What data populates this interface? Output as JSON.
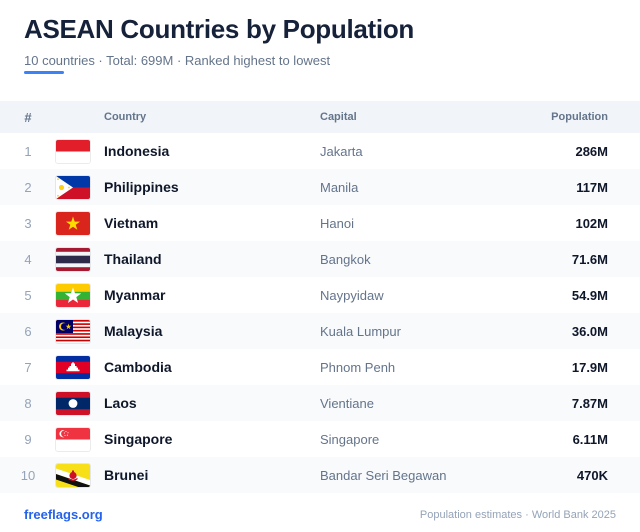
{
  "title": "ASEAN Countries by Population",
  "subtitle": "10 countries · Total: 699M · Ranked highest to lowest",
  "accent_color": "#3b82f6",
  "table": {
    "headers": {
      "rank": "#",
      "country": "Country",
      "capital": "Capital",
      "population": "Population"
    },
    "rows": [
      {
        "rank": "1",
        "flag": "indonesia-flag",
        "country": "Indonesia",
        "capital": "Jakarta",
        "population": "286M"
      },
      {
        "rank": "2",
        "flag": "philippines-flag",
        "country": "Philippines",
        "capital": "Manila",
        "population": "117M"
      },
      {
        "rank": "3",
        "flag": "vietnam-flag",
        "country": "Vietnam",
        "capital": "Hanoi",
        "population": "102M"
      },
      {
        "rank": "4",
        "flag": "thailand-flag",
        "country": "Thailand",
        "capital": "Bangkok",
        "population": "71.6M"
      },
      {
        "rank": "5",
        "flag": "myanmar-flag",
        "country": "Myanmar",
        "capital": "Naypyidaw",
        "population": "54.9M"
      },
      {
        "rank": "6",
        "flag": "malaysia-flag",
        "country": "Malaysia",
        "capital": "Kuala Lumpur",
        "population": "36.0M"
      },
      {
        "rank": "7",
        "flag": "cambodia-flag",
        "country": "Cambodia",
        "capital": "Phnom Penh",
        "population": "17.9M"
      },
      {
        "rank": "8",
        "flag": "laos-flag",
        "country": "Laos",
        "capital": "Vientiane",
        "population": "7.87M"
      },
      {
        "rank": "9",
        "flag": "singapore-flag",
        "country": "Singapore",
        "capital": "Singapore",
        "population": "6.11M"
      },
      {
        "rank": "10",
        "flag": "brunei-flag",
        "country": "Brunei",
        "capital": "Bandar Seri Begawan",
        "population": "470K"
      }
    ]
  },
  "footer": {
    "brand": "freeflags.org",
    "source": "Population estimates · World Bank 2025"
  }
}
